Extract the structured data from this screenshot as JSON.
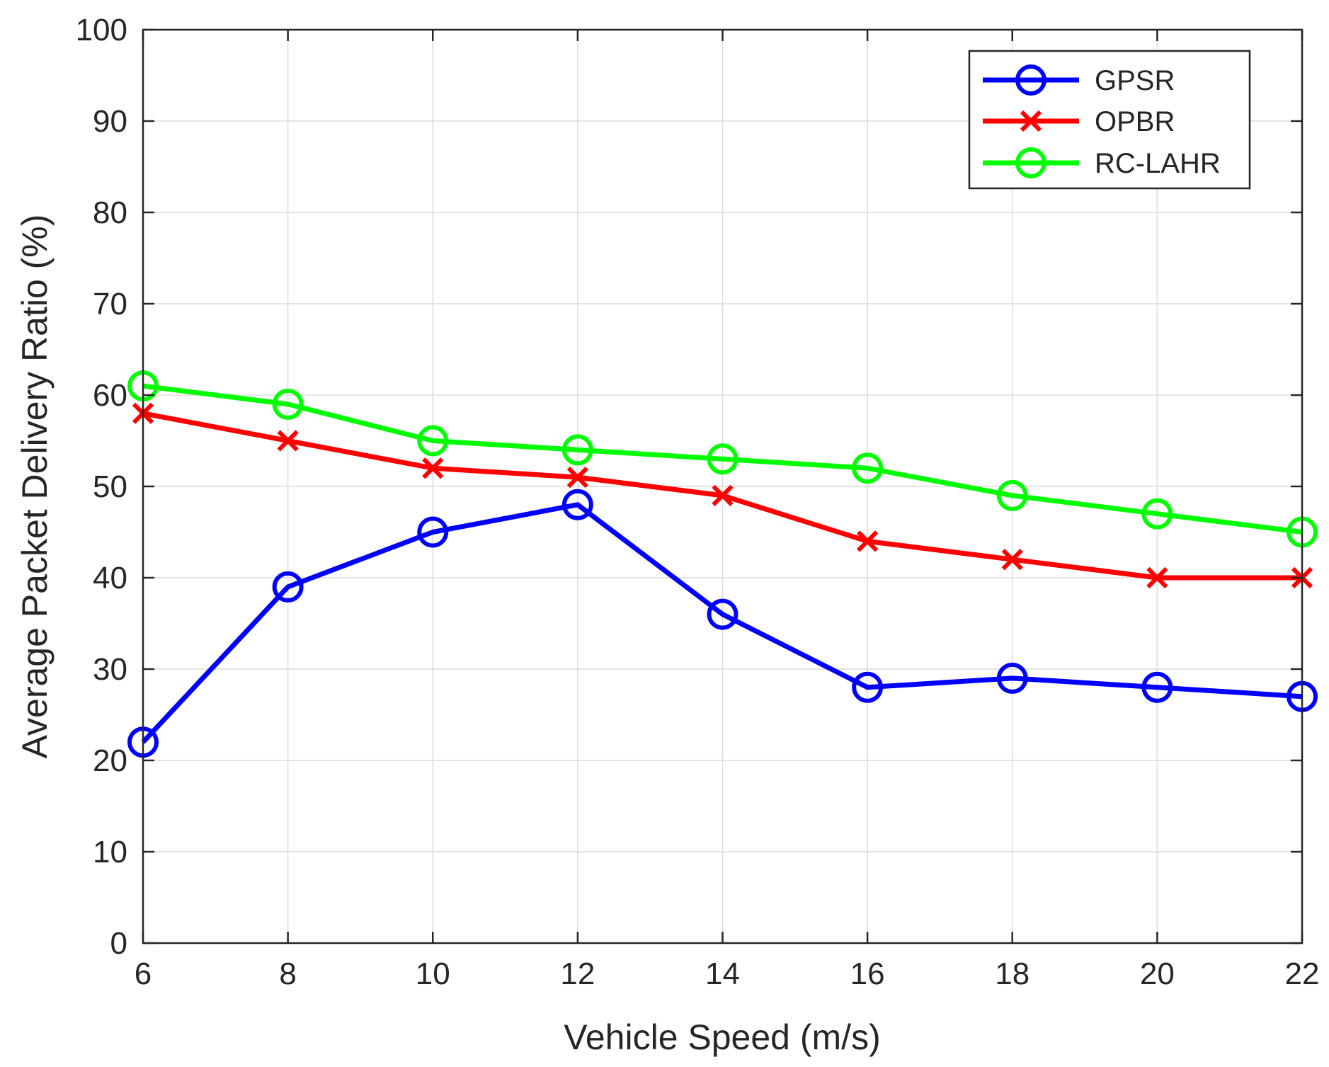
{
  "chart_data": {
    "type": "line",
    "title": "",
    "xlabel": "Vehicle Speed (m/s)",
    "ylabel": "Average Packet Delivery Ratio (%)",
    "x": [
      6,
      8,
      10,
      12,
      14,
      16,
      18,
      20,
      22
    ],
    "xlim": [
      6,
      22
    ],
    "ylim": [
      0,
      100
    ],
    "xticks": [
      "6",
      "8",
      "10",
      "12",
      "14",
      "16",
      "18",
      "20",
      "22"
    ],
    "yticks": [
      "0",
      "10",
      "20",
      "30",
      "40",
      "50",
      "60",
      "70",
      "80",
      "90",
      "100"
    ],
    "grid": true,
    "legend_position": "top-right",
    "series": [
      {
        "name": "GPSR",
        "color": "#0000ff",
        "marker": "circle",
        "values": [
          22,
          39,
          45,
          48,
          36,
          28,
          29,
          28,
          27
        ]
      },
      {
        "name": "OPBR",
        "color": "#ff0000",
        "marker": "x",
        "values": [
          58,
          55,
          52,
          51,
          49,
          44,
          42,
          40,
          40
        ]
      },
      {
        "name": "RC-LAHR",
        "color": "#00ff00",
        "marker": "circle",
        "values": [
          61,
          59,
          55,
          54,
          53,
          52,
          49,
          47,
          45
        ]
      }
    ]
  }
}
